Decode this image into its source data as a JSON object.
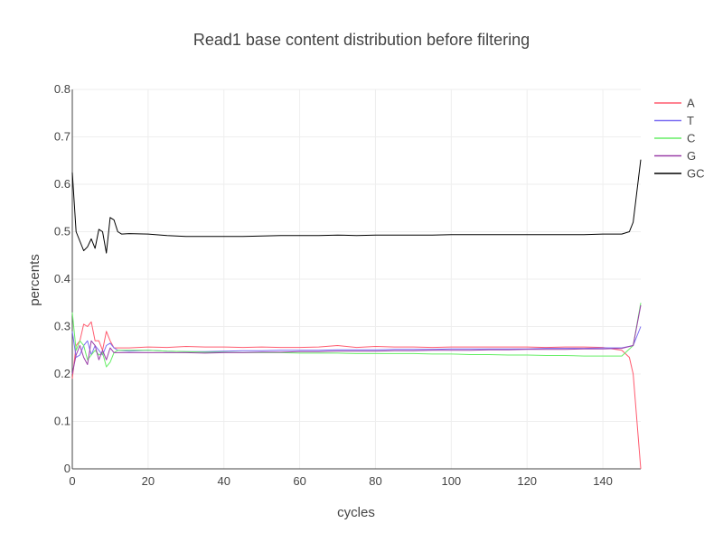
{
  "chart_data": {
    "type": "line",
    "title": "Read1 base content distribution before filtering",
    "xlabel": "cycles",
    "ylabel": "percents",
    "xlim": [
      0,
      150
    ],
    "ylim": [
      0,
      0.8
    ],
    "x_ticks": [
      "0",
      "20",
      "40",
      "60",
      "80",
      "100",
      "120",
      "140"
    ],
    "y_ticks": [
      "0",
      "0.1",
      "0.2",
      "0.3",
      "0.4",
      "0.5",
      "0.6",
      "0.7",
      "0.8"
    ],
    "grid": true,
    "legend_position": "top-right",
    "series": [
      {
        "name": "A",
        "color": "#ff5a6e",
        "points": [
          [
            0,
            0.19
          ],
          [
            1,
            0.26
          ],
          [
            2,
            0.27
          ],
          [
            3,
            0.305
          ],
          [
            4,
            0.3
          ],
          [
            5,
            0.31
          ],
          [
            6,
            0.27
          ],
          [
            7,
            0.27
          ],
          [
            8,
            0.25
          ],
          [
            9,
            0.29
          ],
          [
            10,
            0.27
          ],
          [
            11,
            0.255
          ],
          [
            12,
            0.255
          ],
          [
            15,
            0.255
          ],
          [
            20,
            0.257
          ],
          [
            25,
            0.256
          ],
          [
            30,
            0.258
          ],
          [
            35,
            0.257
          ],
          [
            40,
            0.257
          ],
          [
            45,
            0.256
          ],
          [
            50,
            0.257
          ],
          [
            55,
            0.256
          ],
          [
            60,
            0.256
          ],
          [
            65,
            0.257
          ],
          [
            70,
            0.26
          ],
          [
            75,
            0.256
          ],
          [
            80,
            0.258
          ],
          [
            85,
            0.257
          ],
          [
            90,
            0.257
          ],
          [
            95,
            0.256
          ],
          [
            100,
            0.257
          ],
          [
            105,
            0.257
          ],
          [
            110,
            0.257
          ],
          [
            115,
            0.257
          ],
          [
            120,
            0.257
          ],
          [
            125,
            0.256
          ],
          [
            130,
            0.257
          ],
          [
            135,
            0.257
          ],
          [
            140,
            0.256
          ],
          [
            145,
            0.25
          ],
          [
            147,
            0.235
          ],
          [
            148,
            0.2
          ],
          [
            150,
            0.0
          ]
        ]
      },
      {
        "name": "T",
        "color": "#7a6cf2",
        "points": [
          [
            0,
            0.29
          ],
          [
            1,
            0.235
          ],
          [
            2,
            0.24
          ],
          [
            3,
            0.26
          ],
          [
            4,
            0.27
          ],
          [
            5,
            0.24
          ],
          [
            6,
            0.26
          ],
          [
            7,
            0.25
          ],
          [
            8,
            0.24
          ],
          [
            9,
            0.26
          ],
          [
            10,
            0.265
          ],
          [
            11,
            0.255
          ],
          [
            12,
            0.25
          ],
          [
            15,
            0.248
          ],
          [
            20,
            0.25
          ],
          [
            25,
            0.248
          ],
          [
            30,
            0.247
          ],
          [
            35,
            0.247
          ],
          [
            40,
            0.248
          ],
          [
            45,
            0.249
          ],
          [
            50,
            0.249
          ],
          [
            55,
            0.25
          ],
          [
            60,
            0.25
          ],
          [
            65,
            0.25
          ],
          [
            70,
            0.251
          ],
          [
            75,
            0.251
          ],
          [
            80,
            0.251
          ],
          [
            85,
            0.252
          ],
          [
            90,
            0.252
          ],
          [
            95,
            0.252
          ],
          [
            100,
            0.253
          ],
          [
            105,
            0.253
          ],
          [
            110,
            0.253
          ],
          [
            115,
            0.253
          ],
          [
            120,
            0.253
          ],
          [
            125,
            0.254
          ],
          [
            130,
            0.254
          ],
          [
            135,
            0.254
          ],
          [
            140,
            0.255
          ],
          [
            145,
            0.255
          ],
          [
            148,
            0.26
          ],
          [
            150,
            0.3
          ]
        ]
      },
      {
        "name": "C",
        "color": "#66ee66",
        "points": [
          [
            0,
            0.33
          ],
          [
            1,
            0.25
          ],
          [
            2,
            0.27
          ],
          [
            3,
            0.26
          ],
          [
            4,
            0.23
          ],
          [
            5,
            0.24
          ],
          [
            6,
            0.25
          ],
          [
            7,
            0.24
          ],
          [
            8,
            0.245
          ],
          [
            9,
            0.215
          ],
          [
            10,
            0.225
          ],
          [
            11,
            0.245
          ],
          [
            12,
            0.25
          ],
          [
            15,
            0.25
          ],
          [
            20,
            0.25
          ],
          [
            25,
            0.248
          ],
          [
            30,
            0.247
          ],
          [
            35,
            0.246
          ],
          [
            40,
            0.246
          ],
          [
            45,
            0.245
          ],
          [
            50,
            0.245
          ],
          [
            55,
            0.245
          ],
          [
            60,
            0.244
          ],
          [
            65,
            0.244
          ],
          [
            70,
            0.244
          ],
          [
            75,
            0.243
          ],
          [
            80,
            0.243
          ],
          [
            85,
            0.243
          ],
          [
            90,
            0.243
          ],
          [
            95,
            0.242
          ],
          [
            100,
            0.242
          ],
          [
            105,
            0.241
          ],
          [
            110,
            0.241
          ],
          [
            115,
            0.24
          ],
          [
            120,
            0.24
          ],
          [
            125,
            0.239
          ],
          [
            130,
            0.239
          ],
          [
            135,
            0.238
          ],
          [
            140,
            0.238
          ],
          [
            145,
            0.238
          ],
          [
            148,
            0.26
          ],
          [
            150,
            0.35
          ]
        ]
      },
      {
        "name": "G",
        "color": "#9a3ea8",
        "points": [
          [
            0,
            0.2
          ],
          [
            1,
            0.24
          ],
          [
            2,
            0.26
          ],
          [
            3,
            0.235
          ],
          [
            4,
            0.22
          ],
          [
            5,
            0.27
          ],
          [
            6,
            0.26
          ],
          [
            7,
            0.23
          ],
          [
            8,
            0.25
          ],
          [
            9,
            0.23
          ],
          [
            10,
            0.255
          ],
          [
            11,
            0.245
          ],
          [
            12,
            0.245
          ],
          [
            15,
            0.245
          ],
          [
            20,
            0.245
          ],
          [
            25,
            0.245
          ],
          [
            30,
            0.245
          ],
          [
            35,
            0.244
          ],
          [
            40,
            0.245
          ],
          [
            45,
            0.245
          ],
          [
            50,
            0.246
          ],
          [
            55,
            0.246
          ],
          [
            60,
            0.247
          ],
          [
            65,
            0.247
          ],
          [
            70,
            0.248
          ],
          [
            75,
            0.248
          ],
          [
            80,
            0.248
          ],
          [
            85,
            0.249
          ],
          [
            90,
            0.249
          ],
          [
            95,
            0.25
          ],
          [
            100,
            0.25
          ],
          [
            105,
            0.25
          ],
          [
            110,
            0.251
          ],
          [
            115,
            0.251
          ],
          [
            120,
            0.252
          ],
          [
            125,
            0.252
          ],
          [
            130,
            0.252
          ],
          [
            135,
            0.253
          ],
          [
            140,
            0.253
          ],
          [
            145,
            0.254
          ],
          [
            148,
            0.26
          ],
          [
            150,
            0.345
          ]
        ]
      },
      {
        "name": "GC",
        "color": "#000000",
        "points": [
          [
            0,
            0.625
          ],
          [
            1,
            0.5
          ],
          [
            2,
            0.48
          ],
          [
            3,
            0.46
          ],
          [
            4,
            0.468
          ],
          [
            5,
            0.485
          ],
          [
            6,
            0.465
          ],
          [
            7,
            0.505
          ],
          [
            8,
            0.5
          ],
          [
            9,
            0.455
          ],
          [
            10,
            0.53
          ],
          [
            11,
            0.525
          ],
          [
            12,
            0.5
          ],
          [
            13,
            0.495
          ],
          [
            15,
            0.496
          ],
          [
            20,
            0.495
          ],
          [
            25,
            0.492
          ],
          [
            30,
            0.49
          ],
          [
            35,
            0.49
          ],
          [
            40,
            0.49
          ],
          [
            45,
            0.49
          ],
          [
            50,
            0.491
          ],
          [
            55,
            0.492
          ],
          [
            60,
            0.492
          ],
          [
            65,
            0.492
          ],
          [
            70,
            0.493
          ],
          [
            75,
            0.492
          ],
          [
            80,
            0.493
          ],
          [
            85,
            0.493
          ],
          [
            90,
            0.493
          ],
          [
            95,
            0.493
          ],
          [
            100,
            0.494
          ],
          [
            105,
            0.494
          ],
          [
            110,
            0.494
          ],
          [
            115,
            0.494
          ],
          [
            120,
            0.494
          ],
          [
            125,
            0.494
          ],
          [
            130,
            0.494
          ],
          [
            135,
            0.494
          ],
          [
            140,
            0.495
          ],
          [
            145,
            0.495
          ],
          [
            147,
            0.5
          ],
          [
            148,
            0.52
          ],
          [
            150,
            0.652
          ]
        ]
      }
    ]
  }
}
